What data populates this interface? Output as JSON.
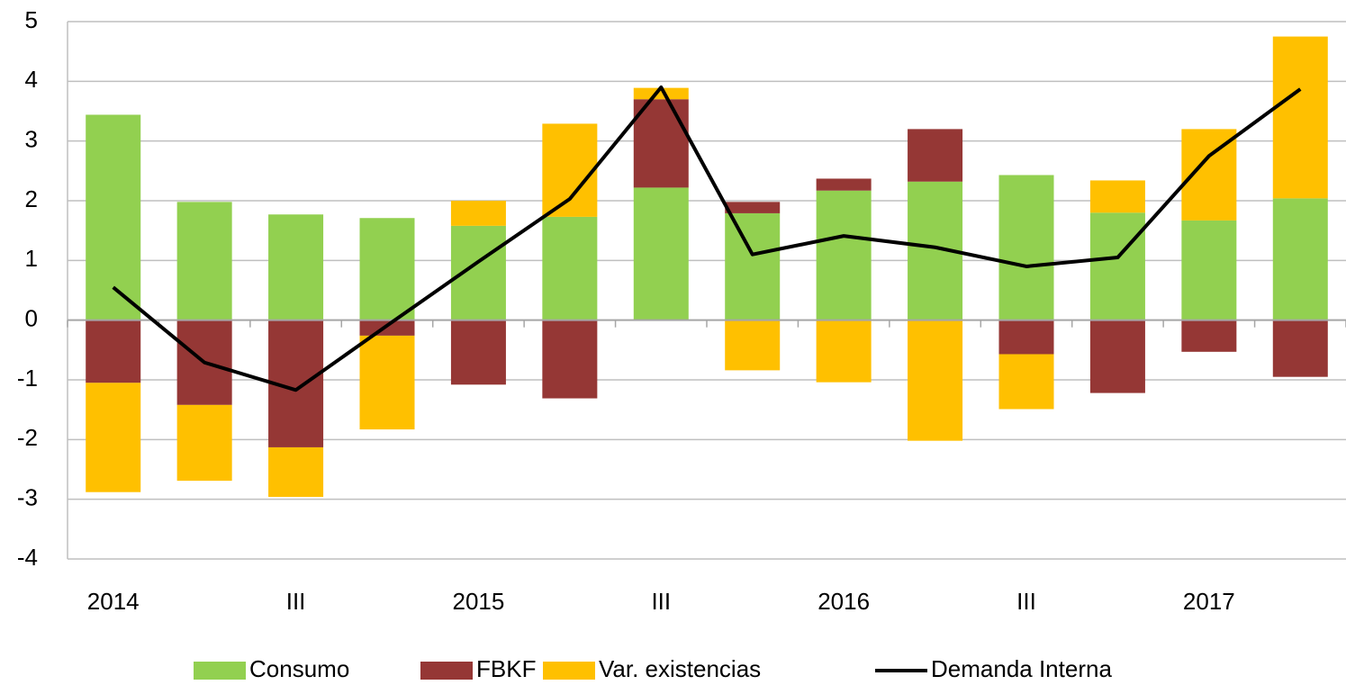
{
  "chart_data": {
    "type": "bar",
    "stacked": true,
    "categories": [
      "2014",
      null,
      "III",
      null,
      "2015",
      null,
      "III",
      null,
      "2016",
      null,
      "III",
      null,
      "2017",
      null
    ],
    "series": [
      {
        "name": "Consumo",
        "color": "#92d050",
        "values": [
          3.44,
          1.98,
          1.77,
          1.71,
          1.58,
          1.73,
          2.22,
          1.79,
          2.17,
          2.32,
          2.43,
          1.8,
          1.67,
          2.04
        ]
      },
      {
        "name": "FBKF",
        "color": "#953735",
        "values": [
          -1.05,
          -1.42,
          -2.13,
          -0.26,
          -1.08,
          -1.31,
          1.48,
          0.19,
          0.2,
          0.88,
          -0.57,
          -1.22,
          -0.53,
          -0.95
        ]
      },
      {
        "name": "Var. existencias",
        "color": "#ffc000",
        "values": [
          -1.83,
          -1.27,
          -0.83,
          -1.57,
          0.42,
          1.56,
          0.19,
          -0.84,
          -1.04,
          -2.02,
          -0.92,
          0.54,
          1.53,
          2.71
        ]
      },
      {
        "name": "Demanda Interna",
        "type": "line",
        "color": "#000000",
        "values": [
          0.55,
          -0.71,
          -1.17,
          -0.09,
          0.98,
          2.03,
          3.9,
          1.1,
          1.41,
          1.22,
          0.9,
          1.05,
          2.75,
          3.87
        ]
      }
    ],
    "ylim": [
      -4,
      5
    ],
    "yticks": [
      -4,
      -3,
      -2,
      -1,
      0,
      1,
      2,
      3,
      4,
      5
    ],
    "grid": true,
    "legend": "bottom"
  }
}
